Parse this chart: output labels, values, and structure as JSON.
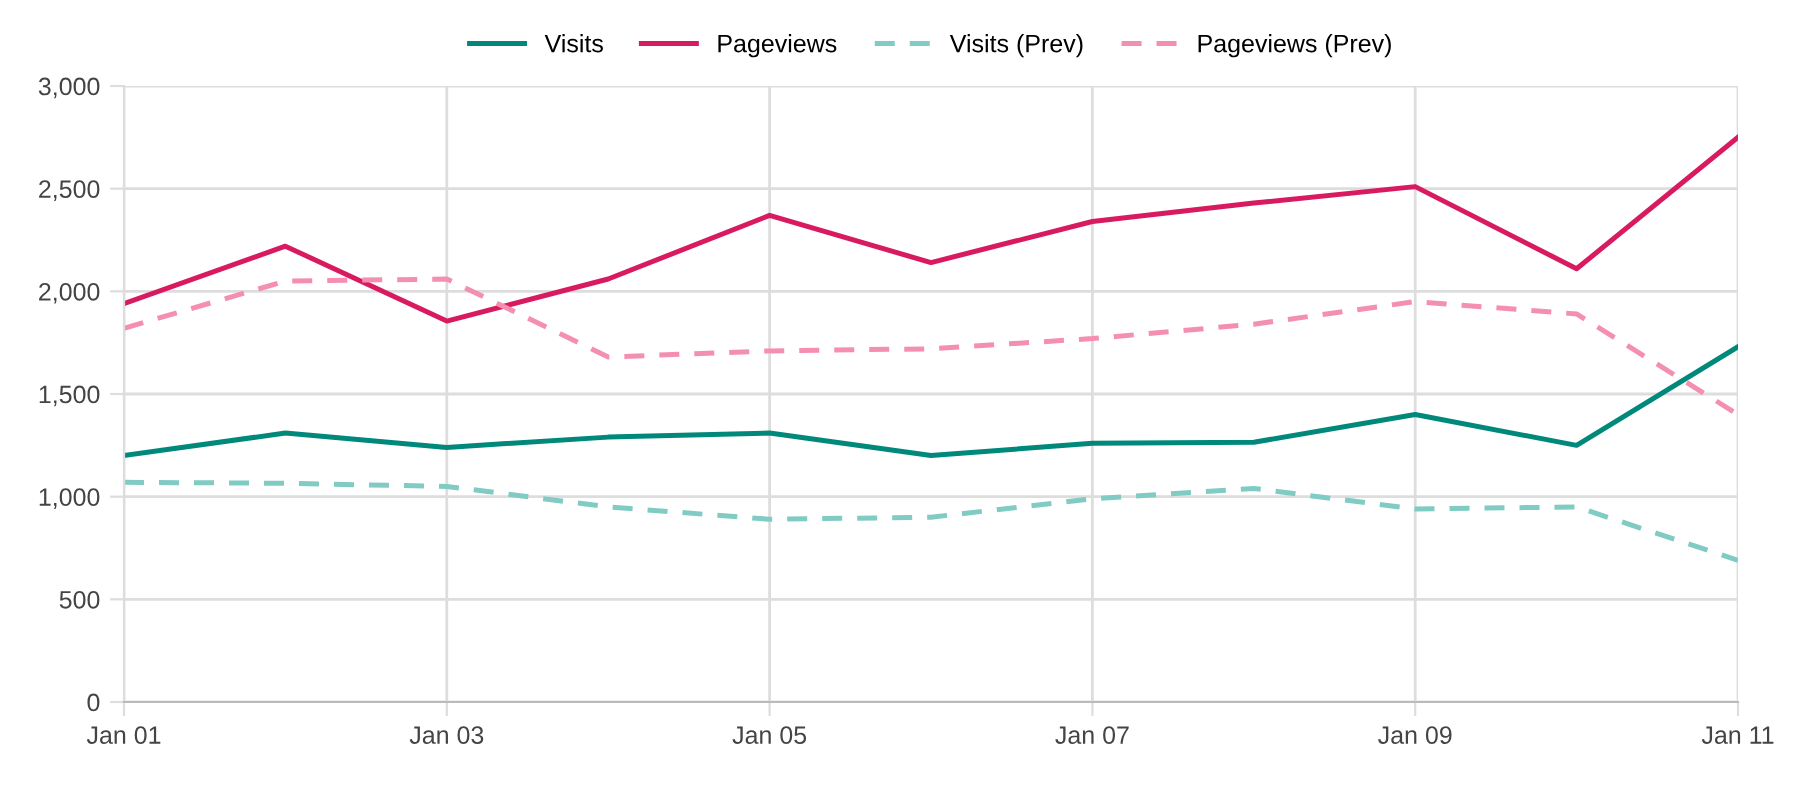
{
  "chart_data": {
    "type": "line",
    "categories": [
      "Jan 01",
      null,
      "Jan 03",
      null,
      "Jan 05",
      null,
      "Jan 07",
      null,
      "Jan 09",
      null,
      "Jan 11"
    ],
    "series": [
      {
        "name": "Visits",
        "color": "#00897b",
        "values": [
          1200,
          1310,
          1240,
          1290,
          1310,
          1200,
          1260,
          1265,
          1400,
          1250,
          1730
        ]
      },
      {
        "name": "Pageviews",
        "color": "#d81b60",
        "values": [
          1940,
          2220,
          1855,
          2060,
          2370,
          2140,
          2340,
          2430,
          2510,
          2110,
          2750
        ]
      },
      {
        "name": "Visits (Prev)",
        "color": "#80cbc4",
        "line_style": "dashed",
        "values": [
          1070,
          1065,
          1050,
          950,
          890,
          900,
          990,
          1040,
          940,
          950,
          690
        ]
      },
      {
        "name": "Pageviews (Prev)",
        "color": "#f48fb1",
        "line_style": "dashed",
        "values": [
          1820,
          2050,
          2060,
          1680,
          1710,
          1720,
          1770,
          1840,
          1950,
          1890,
          1400
        ]
      }
    ],
    "ylim": [
      0,
      3000
    ],
    "yticks": [
      0,
      500,
      {
        "value": 1000,
        "label": "1,000"
      },
      {
        "value": 1500,
        "label": "1,500"
      },
      {
        "value": 2000,
        "label": "2,000"
      },
      {
        "value": 2500,
        "label": "2,500"
      },
      {
        "value": 3000,
        "label": "3,000"
      }
    ],
    "grid": true,
    "legend": "top",
    "marker": "none",
    "line_style": "solid"
  }
}
